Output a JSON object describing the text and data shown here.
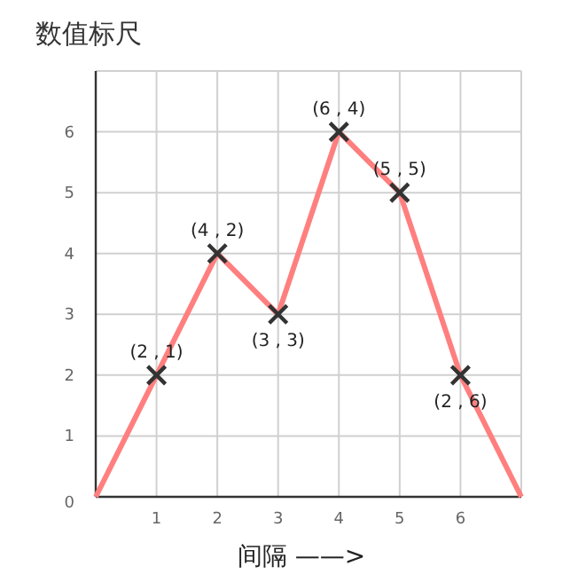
{
  "chart_data": {
    "type": "line",
    "title": "数值标尺",
    "xlabel": "间隔 ——>",
    "xlim": [
      0,
      7
    ],
    "ylim": [
      0,
      7
    ],
    "xticks": [
      1,
      2,
      3,
      4,
      5,
      6
    ],
    "yticks": [
      0,
      1,
      2,
      3,
      4,
      5,
      6
    ],
    "grid": true,
    "series": [
      {
        "color": "#ff7f7f",
        "x": [
          0,
          1,
          2,
          3,
          4,
          5,
          6,
          7
        ],
        "values": [
          0,
          2,
          4,
          3,
          6,
          5,
          2,
          0
        ]
      },
      {
        "type": "scatter",
        "marker": "cross",
        "color": "#333333",
        "x": [
          1,
          2,
          3,
          4,
          5,
          6
        ],
        "values": [
          2,
          4,
          3,
          6,
          5,
          2
        ]
      }
    ],
    "annotations": [
      {
        "text": "(2 , 1)",
        "x": 1,
        "y": 2
      },
      {
        "text": "(4 , 2)",
        "x": 2,
        "y": 4
      },
      {
        "text": "(3 , 3)",
        "x": 3,
        "y": 3
      },
      {
        "text": "(6 , 4)",
        "x": 4,
        "y": 6
      },
      {
        "text": "(5 , 5)",
        "x": 5,
        "y": 5
      },
      {
        "text": "(2 , 6)",
        "x": 6,
        "y": 2
      }
    ]
  }
}
